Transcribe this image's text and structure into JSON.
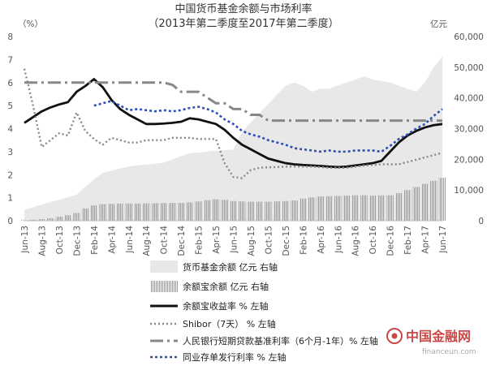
{
  "chart_data": {
    "type": "line",
    "title": "中国货币基金余额与市场利率",
    "subtitle": "（2013年第二季度至2017年第二季度）",
    "y_left_unit": "（%）",
    "y_right_unit": "亿元",
    "y_left_ticks": [
      "0",
      "1",
      "2",
      "3",
      "4",
      "5",
      "6",
      "7",
      "8"
    ],
    "y_right_ticks": [
      "0",
      "10,000",
      "20,000",
      "30,000",
      "40,000",
      "50,000",
      "60,000"
    ],
    "ylim_left": [
      0,
      8
    ],
    "ylim_right": [
      0,
      60000
    ],
    "x": [
      "2013-06",
      "2013-07",
      "2013-08",
      "2013-09",
      "2013-10",
      "2013-11",
      "2013-12",
      "2014-01",
      "2014-02",
      "2014-03",
      "2014-04",
      "2014-05",
      "2014-06",
      "2014-07",
      "2014-08",
      "2014-09",
      "2014-10",
      "2014-11",
      "2014-12",
      "2015-01",
      "2015-02",
      "2015-03",
      "2015-04",
      "2015-05",
      "2015-06",
      "2015-07",
      "2015-08",
      "2015-09",
      "2015-10",
      "2015-11",
      "2015-12",
      "2016-01",
      "2016-02",
      "2016-03",
      "2016-04",
      "2016-05",
      "2016-06",
      "2016-07",
      "2016-08",
      "2016-09",
      "2016-10",
      "2016-11",
      "2016-12",
      "2017-01",
      "2017-02",
      "2017-03",
      "2017-04",
      "2017-05",
      "2017-06"
    ],
    "x_tick_labels": [
      "Jun-13",
      "Aug-13",
      "Oct-13",
      "Dec-13",
      "Feb-14",
      "Apr-14",
      "Jun-14",
      "Aug-14",
      "Oct-14",
      "Dec-14",
      "Feb-15",
      "Apr-15",
      "Jun-15",
      "Aug-15",
      "Oct-15",
      "Dec-15",
      "Feb-16",
      "Apr-16",
      "Jun-16",
      "Aug-16",
      "Oct-16",
      "Dec-16",
      "Feb-17",
      "Apr-17",
      "Jun-17"
    ],
    "series": [
      {
        "name": "货币基金余额 亿元 右轴",
        "kind": "area",
        "axis": "right",
        "color": "#e8e8e8",
        "values": [
          3500,
          4400,
          5300,
          6100,
          6800,
          7600,
          8500,
          11000,
          13500,
          15600,
          16300,
          17000,
          17700,
          18000,
          18300,
          18600,
          18900,
          20000,
          21000,
          22000,
          22200,
          22500,
          22800,
          23000,
          23200,
          29000,
          32000,
          35000,
          38000,
          41000,
          44000,
          45000,
          44000,
          42000,
          43000,
          43000,
          44000,
          45000,
          46000,
          47000,
          46000,
          45500,
          45000,
          44000,
          43000,
          42000,
          45000,
          50000,
          53500
        ]
      },
      {
        "name": "余额宝余额 亿元 右轴",
        "kind": "bar",
        "axis": "right",
        "color": "#a8a8a8",
        "values": [
          200,
          350,
          500,
          800,
          1300,
          1800,
          2500,
          4000,
          5000,
          5400,
          5500,
          5600,
          5600,
          5600,
          5650,
          5700,
          5750,
          5800,
          5800,
          6000,
          6300,
          6700,
          7000,
          6800,
          6400,
          6300,
          6200,
          6200,
          6200,
          6300,
          6400,
          6600,
          7200,
          7600,
          7900,
          8000,
          8100,
          8200,
          8300,
          8300,
          8200,
          8250,
          8300,
          9000,
          10000,
          11000,
          12000,
          13000,
          14000
        ]
      },
      {
        "name": "余额宝收益率 % 左轴",
        "kind": "line",
        "axis": "left",
        "color": "#111111",
        "dash": "",
        "width": 2.8,
        "values": [
          4.25,
          4.5,
          4.75,
          4.92,
          5.05,
          5.15,
          5.6,
          5.85,
          6.15,
          5.8,
          5.25,
          4.85,
          4.6,
          4.4,
          4.2,
          4.2,
          4.22,
          4.25,
          4.3,
          4.45,
          4.4,
          4.3,
          4.2,
          3.95,
          3.6,
          3.3,
          3.1,
          2.9,
          2.7,
          2.6,
          2.5,
          2.45,
          2.42,
          2.4,
          2.38,
          2.35,
          2.33,
          2.35,
          2.4,
          2.45,
          2.5,
          2.6,
          3.0,
          3.4,
          3.7,
          3.9,
          4.05,
          4.15,
          4.2
        ]
      },
      {
        "name": "Shibor（7天） % 左轴",
        "kind": "line",
        "axis": "left",
        "color": "#888888",
        "dash": "2,3",
        "width": 2.4,
        "values": [
          6.6,
          5.0,
          3.2,
          3.5,
          3.8,
          3.7,
          4.7,
          3.9,
          3.55,
          3.3,
          3.6,
          3.5,
          3.4,
          3.4,
          3.5,
          3.5,
          3.5,
          3.6,
          3.6,
          3.6,
          3.55,
          3.55,
          3.55,
          2.5,
          1.9,
          1.85,
          2.2,
          2.3,
          2.32,
          2.33,
          2.35,
          2.35,
          2.35,
          2.35,
          2.33,
          2.3,
          2.3,
          2.3,
          2.35,
          2.4,
          2.42,
          2.45,
          2.45,
          2.45,
          2.55,
          2.65,
          2.75,
          2.85,
          2.95
        ]
      },
      {
        "name": "人民银行短期贷款基准利率（6个月-1年）% 左轴",
        "kind": "line",
        "axis": "left",
        "color": "#888888",
        "dash": "16,5,3,5",
        "width": 3,
        "values": [
          6.0,
          6.0,
          6.0,
          6.0,
          6.0,
          6.0,
          6.0,
          6.0,
          6.0,
          6.0,
          6.0,
          6.0,
          6.0,
          6.0,
          6.0,
          6.0,
          6.0,
          5.9,
          5.6,
          5.6,
          5.6,
          5.35,
          5.1,
          5.1,
          4.85,
          4.85,
          4.6,
          4.6,
          4.35,
          4.35,
          4.35,
          4.35,
          4.35,
          4.35,
          4.35,
          4.35,
          4.35,
          4.35,
          4.35,
          4.35,
          4.35,
          4.35,
          4.35,
          4.35,
          4.35,
          4.35,
          4.35,
          4.35,
          4.35
        ]
      },
      {
        "name": "同业存单发行利率 % 左轴",
        "kind": "line",
        "axis": "left",
        "color": "#2e4fb5",
        "dash": "3,3",
        "width": 2.6,
        "values": [
          null,
          null,
          null,
          null,
          null,
          null,
          null,
          null,
          5.0,
          5.1,
          5.2,
          5.0,
          4.8,
          4.85,
          4.8,
          4.75,
          4.8,
          4.75,
          4.8,
          4.9,
          4.95,
          4.85,
          4.7,
          4.4,
          4.2,
          3.9,
          3.75,
          3.65,
          3.5,
          3.4,
          3.3,
          3.15,
          3.1,
          3.05,
          3.0,
          3.05,
          3.0,
          3.0,
          3.05,
          3.05,
          3.05,
          3.0,
          3.25,
          3.55,
          3.75,
          4.0,
          4.2,
          4.55,
          4.85
        ]
      }
    ]
  },
  "watermark": {
    "cn": "中国金融网",
    "en": "financeun.com"
  }
}
